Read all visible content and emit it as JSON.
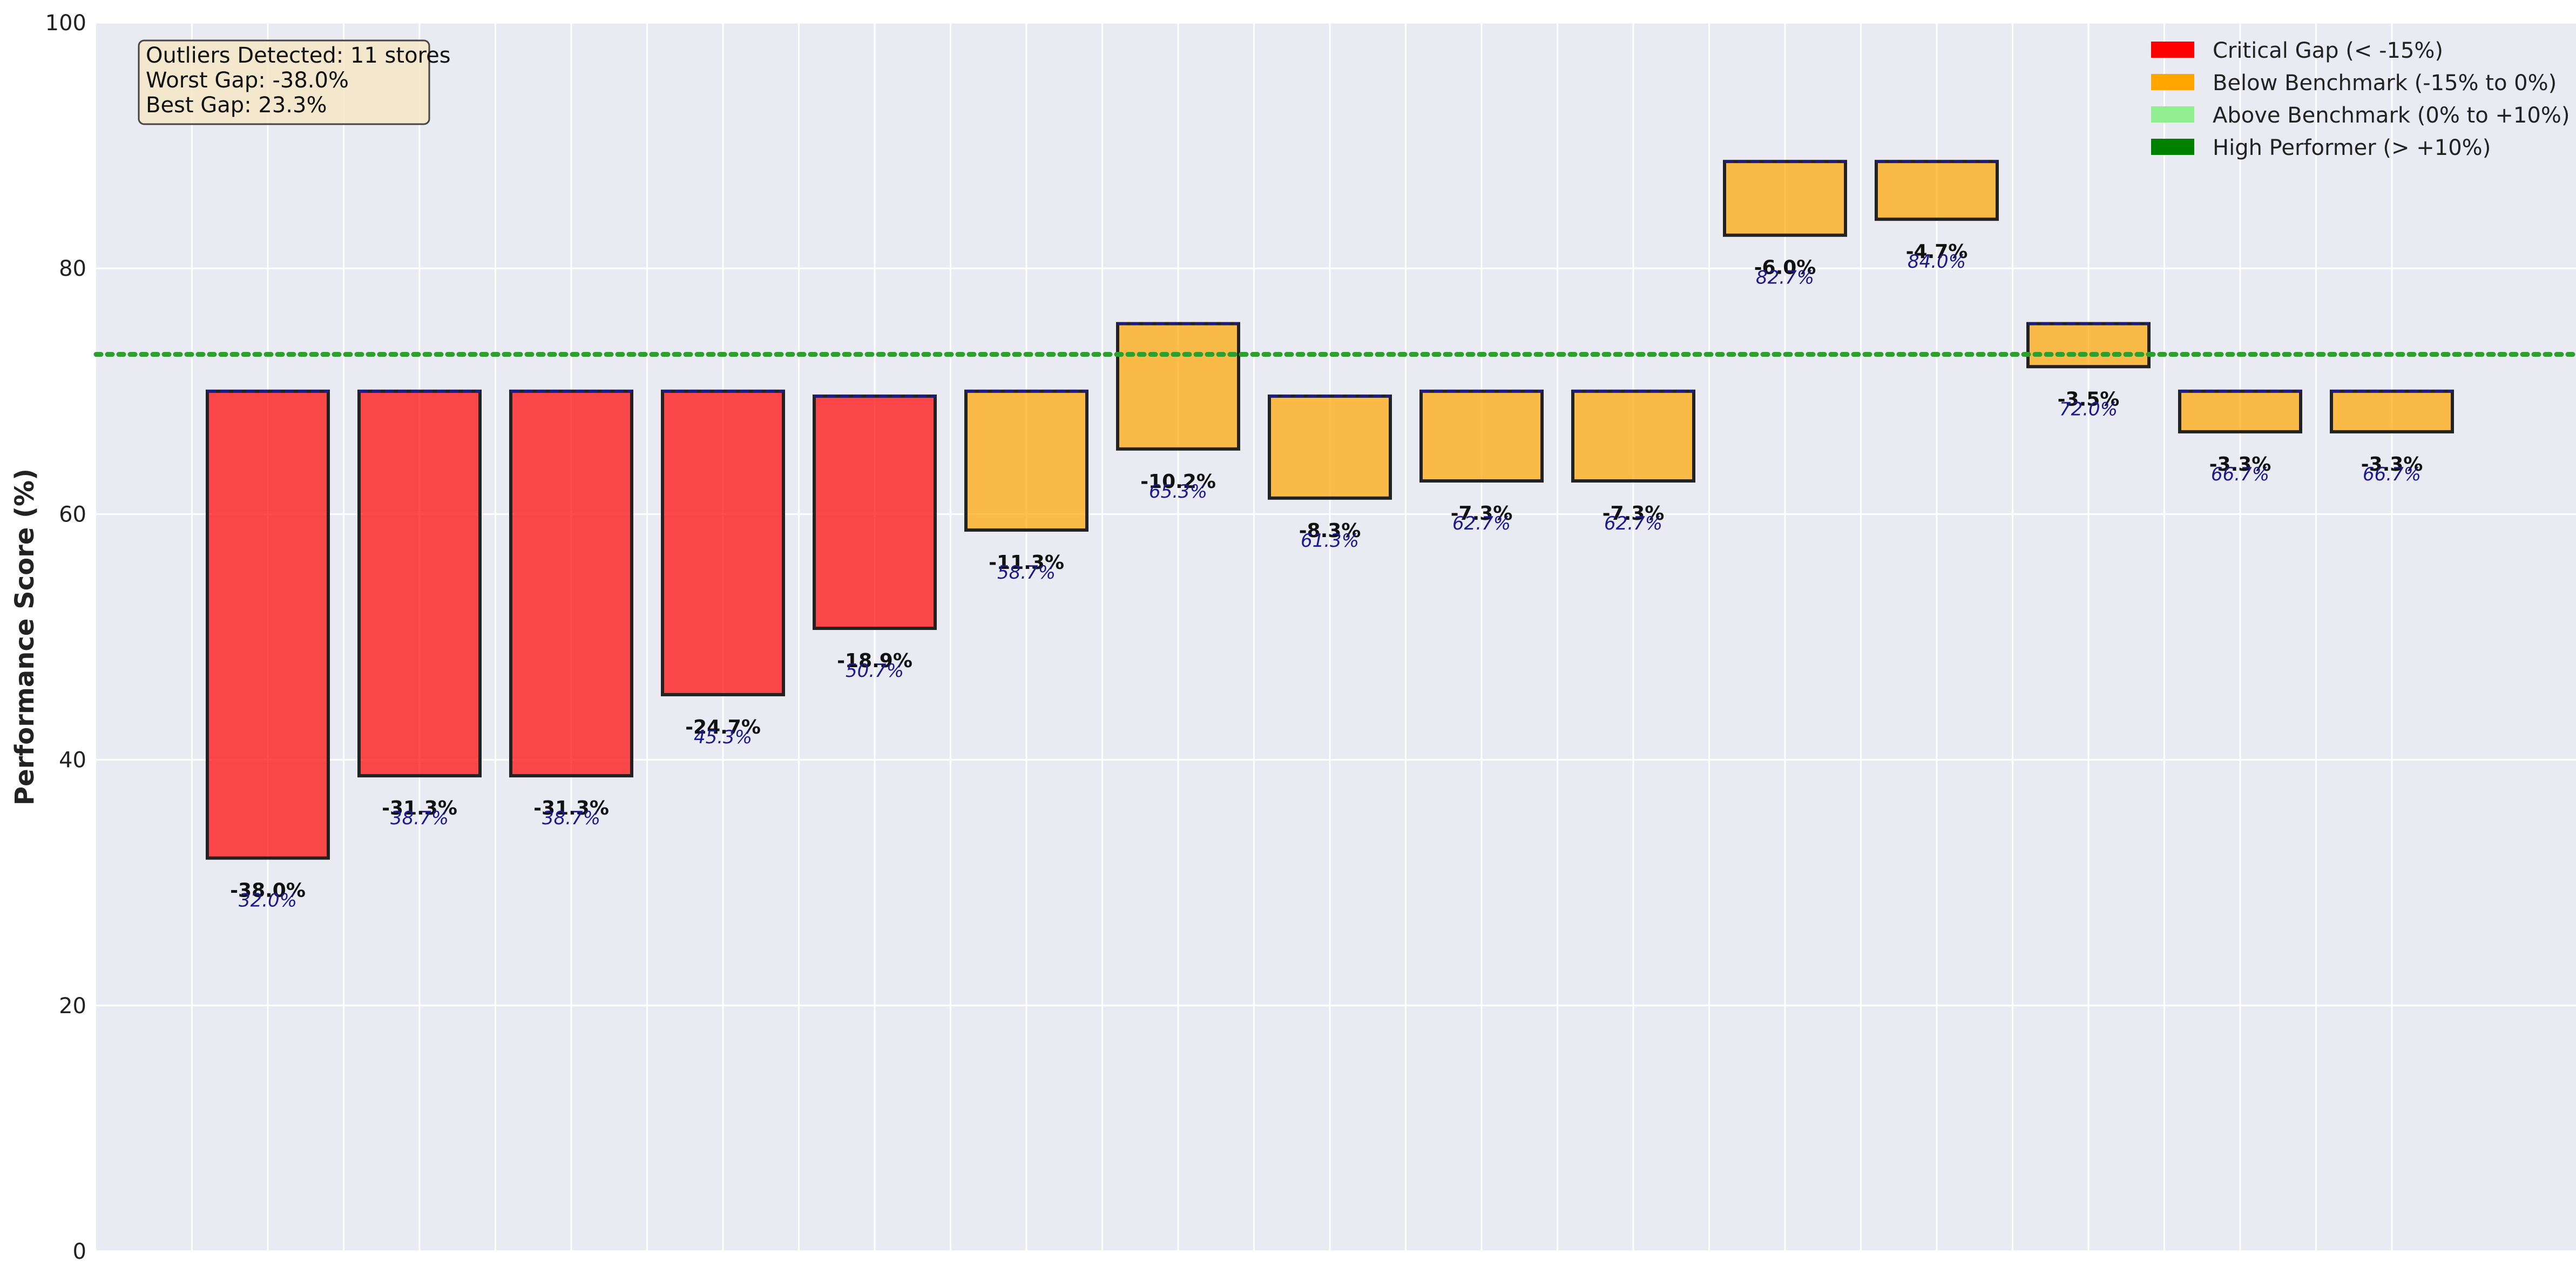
{
  "chart_data": {
    "type": "bar",
    "title": "",
    "xlabel": "",
    "ylabel": "Performance Score (%)",
    "ylim": [
      0,
      100
    ],
    "yticks": [
      0,
      20,
      40,
      60,
      80,
      100
    ],
    "grid": true,
    "benchmark_line": 73,
    "benchmark_style": "dotted",
    "colors": {
      "critical": "#ff0000",
      "below": "#ffa500",
      "above": "#90ee90",
      "high": "#008000",
      "benchmark": "#2e9e2e",
      "expected_marker": "#1a1a8c",
      "plot_bg": "#eaeaf2"
    },
    "bars": [
      {
        "score": 32.0,
        "expected": 70.0,
        "gap_label": "-38.0%",
        "score_label": "32.0%",
        "category": "critical"
      },
      {
        "score": 38.7,
        "expected": 70.0,
        "gap_label": "-31.3%",
        "score_label": "38.7%",
        "category": "critical"
      },
      {
        "score": 38.7,
        "expected": 70.0,
        "gap_label": "-31.3%",
        "score_label": "38.7%",
        "category": "critical"
      },
      {
        "score": 45.3,
        "expected": 70.0,
        "gap_label": "-24.7%",
        "score_label": "45.3%",
        "category": "critical"
      },
      {
        "score": 50.7,
        "expected": 69.6,
        "gap_label": "-18.9%",
        "score_label": "50.7%",
        "category": "critical"
      },
      {
        "score": 58.7,
        "expected": 70.0,
        "gap_label": "-11.3%",
        "score_label": "58.7%",
        "category": "below"
      },
      {
        "score": 65.3,
        "expected": 75.5,
        "gap_label": "-10.2%",
        "score_label": "65.3%",
        "category": "below"
      },
      {
        "score": 61.3,
        "expected": 69.6,
        "gap_label": "-8.3%",
        "score_label": "61.3%",
        "category": "below"
      },
      {
        "score": 62.7,
        "expected": 70.0,
        "gap_label": "-7.3%",
        "score_label": "62.7%",
        "category": "below"
      },
      {
        "score": 62.7,
        "expected": 70.0,
        "gap_label": "-7.3%",
        "score_label": "62.7%",
        "category": "below"
      },
      {
        "score": 82.7,
        "expected": 88.7,
        "gap_label": "-6.0%",
        "score_label": "82.7%",
        "category": "below"
      },
      {
        "score": 84.0,
        "expected": 88.7,
        "gap_label": "-4.7%",
        "score_label": "84.0%",
        "category": "below"
      },
      {
        "score": 72.0,
        "expected": 75.5,
        "gap_label": "-3.5%",
        "score_label": "72.0%",
        "category": "below"
      },
      {
        "score": 66.7,
        "expected": 70.0,
        "gap_label": "-3.3%",
        "score_label": "66.7%",
        "category": "below"
      },
      {
        "score": 66.7,
        "expected": 70.0,
        "gap_label": "-3.3%",
        "score_label": "66.7%",
        "category": "below"
      }
    ],
    "legend": {
      "placement": "top-right",
      "entries": [
        {
          "label": "Critical Gap (< -15%)",
          "color": "#ff0000"
        },
        {
          "label": "Below Benchmark (-15% to 0%)",
          "color": "#ffa500"
        },
        {
          "label": "Above Benchmark (0% to +10%)",
          "color": "#90ee90"
        },
        {
          "label": "High Performer (> +10%)",
          "color": "#008000"
        }
      ]
    },
    "stats_box": {
      "placement": "top-left",
      "lines": [
        "Outliers Detected: 11 stores",
        "Worst Gap: -38.0%",
        "Best Gap: 23.3%"
      ]
    }
  }
}
